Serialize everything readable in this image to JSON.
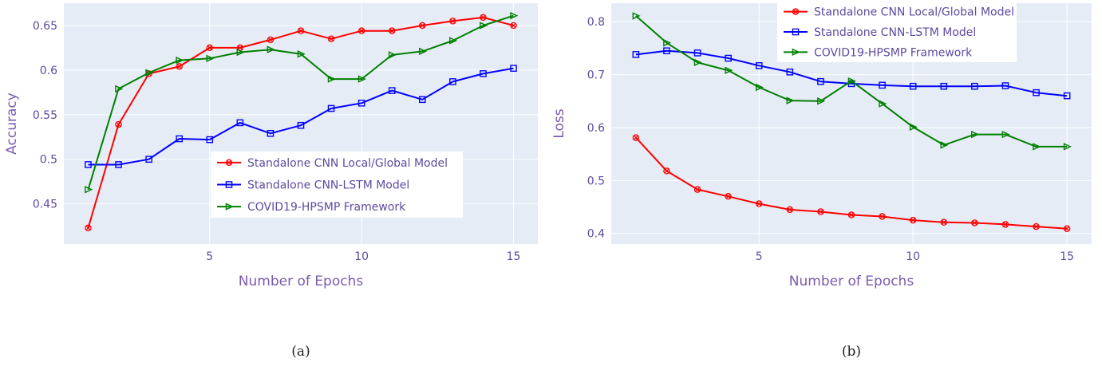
{
  "chart_data": [
    {
      "type": "line",
      "caption": "(a)",
      "xlabel": "Number of Epochs",
      "ylabel": "Accuracy",
      "xlim": [
        0.2,
        15.8
      ],
      "ylim": [
        0.405,
        0.675
      ],
      "xticks": [
        5,
        10,
        15
      ],
      "yticks": [
        0.45,
        0.5,
        0.55,
        0.6,
        0.65
      ],
      "ytick_labels": [
        "0.45",
        "0.5",
        "0.55",
        "0.6",
        "0.65"
      ],
      "grid": true,
      "legend_position": "bottom-right",
      "x": [
        1,
        2,
        3,
        4,
        5,
        6,
        7,
        8,
        9,
        10,
        11,
        12,
        13,
        14,
        15
      ],
      "series": [
        {
          "name": "Standalone CNN Local/Global Model",
          "color": "#ff0000",
          "marker": "circle-x",
          "values": [
            0.423,
            0.539,
            0.596,
            0.604,
            0.625,
            0.625,
            0.634,
            0.644,
            0.635,
            0.644,
            0.644,
            0.65,
            0.655,
            0.659,
            0.65
          ]
        },
        {
          "name": "Standalone CNN-LSTM Model",
          "color": "#0000ff",
          "marker": "square",
          "values": [
            0.494,
            0.494,
            0.5,
            0.523,
            0.522,
            0.541,
            0.529,
            0.538,
            0.557,
            0.563,
            0.577,
            0.567,
            0.587,
            0.596,
            0.602
          ]
        },
        {
          "name": "COVID19-HPSMP Framework",
          "color": "#008000",
          "marker": "triangle-right",
          "values": [
            0.466,
            0.579,
            0.597,
            0.611,
            0.613,
            0.62,
            0.623,
            0.618,
            0.59,
            0.59,
            0.617,
            0.621,
            0.633,
            0.65,
            0.661
          ]
        }
      ]
    },
    {
      "type": "line",
      "caption": "(b)",
      "xlabel": "Number of Epochs",
      "ylabel": "Loss",
      "xlim": [
        0.2,
        15.8
      ],
      "ylim": [
        0.38,
        0.835
      ],
      "xticks": [
        5,
        10,
        15
      ],
      "yticks": [
        0.4,
        0.5,
        0.6,
        0.7,
        0.8
      ],
      "ytick_labels": [
        "0.4",
        "0.5",
        "0.6",
        "0.7",
        "0.8"
      ],
      "grid": true,
      "legend_position": "top-center",
      "x": [
        1,
        2,
        3,
        4,
        5,
        6,
        7,
        8,
        9,
        10,
        11,
        12,
        13,
        14,
        15
      ],
      "series": [
        {
          "name": "Standalone CNN Local/Global Model",
          "color": "#ff0000",
          "marker": "circle-x",
          "values": [
            0.581,
            0.518,
            0.483,
            0.47,
            0.456,
            0.445,
            0.441,
            0.435,
            0.432,
            0.425,
            0.421,
            0.42,
            0.417,
            0.413,
            0.409
          ]
        },
        {
          "name": "Standalone CNN-LSTM Model",
          "color": "#0000ff",
          "marker": "square",
          "values": [
            0.738,
            0.745,
            0.741,
            0.731,
            0.717,
            0.705,
            0.687,
            0.683,
            0.68,
            0.678,
            0.678,
            0.678,
            0.679,
            0.666,
            0.66
          ]
        },
        {
          "name": "COVID19-HPSMP Framework",
          "color": "#008000",
          "marker": "triangle-right",
          "values": [
            0.811,
            0.76,
            0.723,
            0.708,
            0.676,
            0.651,
            0.65,
            0.688,
            0.645,
            0.601,
            0.567,
            0.587,
            0.587,
            0.564,
            0.564
          ]
        }
      ]
    }
  ]
}
